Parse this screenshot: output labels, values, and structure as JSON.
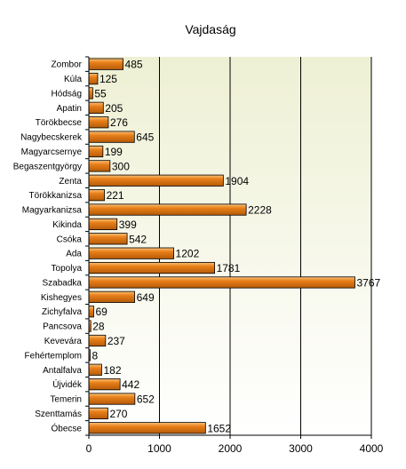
{
  "chart_data": {
    "type": "bar",
    "orientation": "horizontal",
    "title": "Vajdaság",
    "xlabel": "",
    "ylabel": "",
    "categories": [
      "Zombor",
      "Kúla",
      "Hódság",
      "Apatin",
      "Törökbecse",
      "Nagybecskerek",
      "Magyarcsernye",
      "Begaszentgyörgy",
      "Zenta",
      "Törökkanizsa",
      "Magyarkanizsa",
      "Kikinda",
      "Csóka",
      "Ada",
      "Topolya",
      "Szabadka",
      "Kishegyes",
      "Zichyfalva",
      "Pancsova",
      "Kevevára",
      "Fehértemplom",
      "Antalfalva",
      "Újvidék",
      "Temerin",
      "Szenttamás",
      "Óbecse"
    ],
    "values": [
      485,
      125,
      55,
      205,
      276,
      645,
      199,
      300,
      1904,
      221,
      2228,
      399,
      542,
      1202,
      1781,
      3767,
      649,
      69,
      28,
      237,
      8,
      182,
      442,
      652,
      270,
      1652
    ],
    "value_labels": [
      "485",
      "125",
      "55",
      "205",
      "276",
      "645",
      "199",
      "300",
      "1904",
      "221",
      "2228",
      "399",
      "542",
      "1202",
      "1781",
      "3767",
      "649",
      "69",
      "28",
      "237",
      "8",
      "182",
      "442",
      "652",
      "270",
      "1652"
    ],
    "xlim": [
      0,
      4000
    ],
    "xticks": [
      0,
      1000,
      2000,
      3000,
      4000
    ],
    "xtick_labels": [
      "0",
      "1000",
      "2000",
      "3000",
      "4000"
    ],
    "grid": true,
    "legend": "none",
    "colors": {
      "bar_fill": "#e8801a",
      "bar_light": "#fbc27a",
      "bar_dark": "#b55a08",
      "bar_outline": "#000000",
      "plot_background_top": "#eef0d4",
      "plot_background_bottom": "#ffffff",
      "gridline": "#000000"
    }
  }
}
